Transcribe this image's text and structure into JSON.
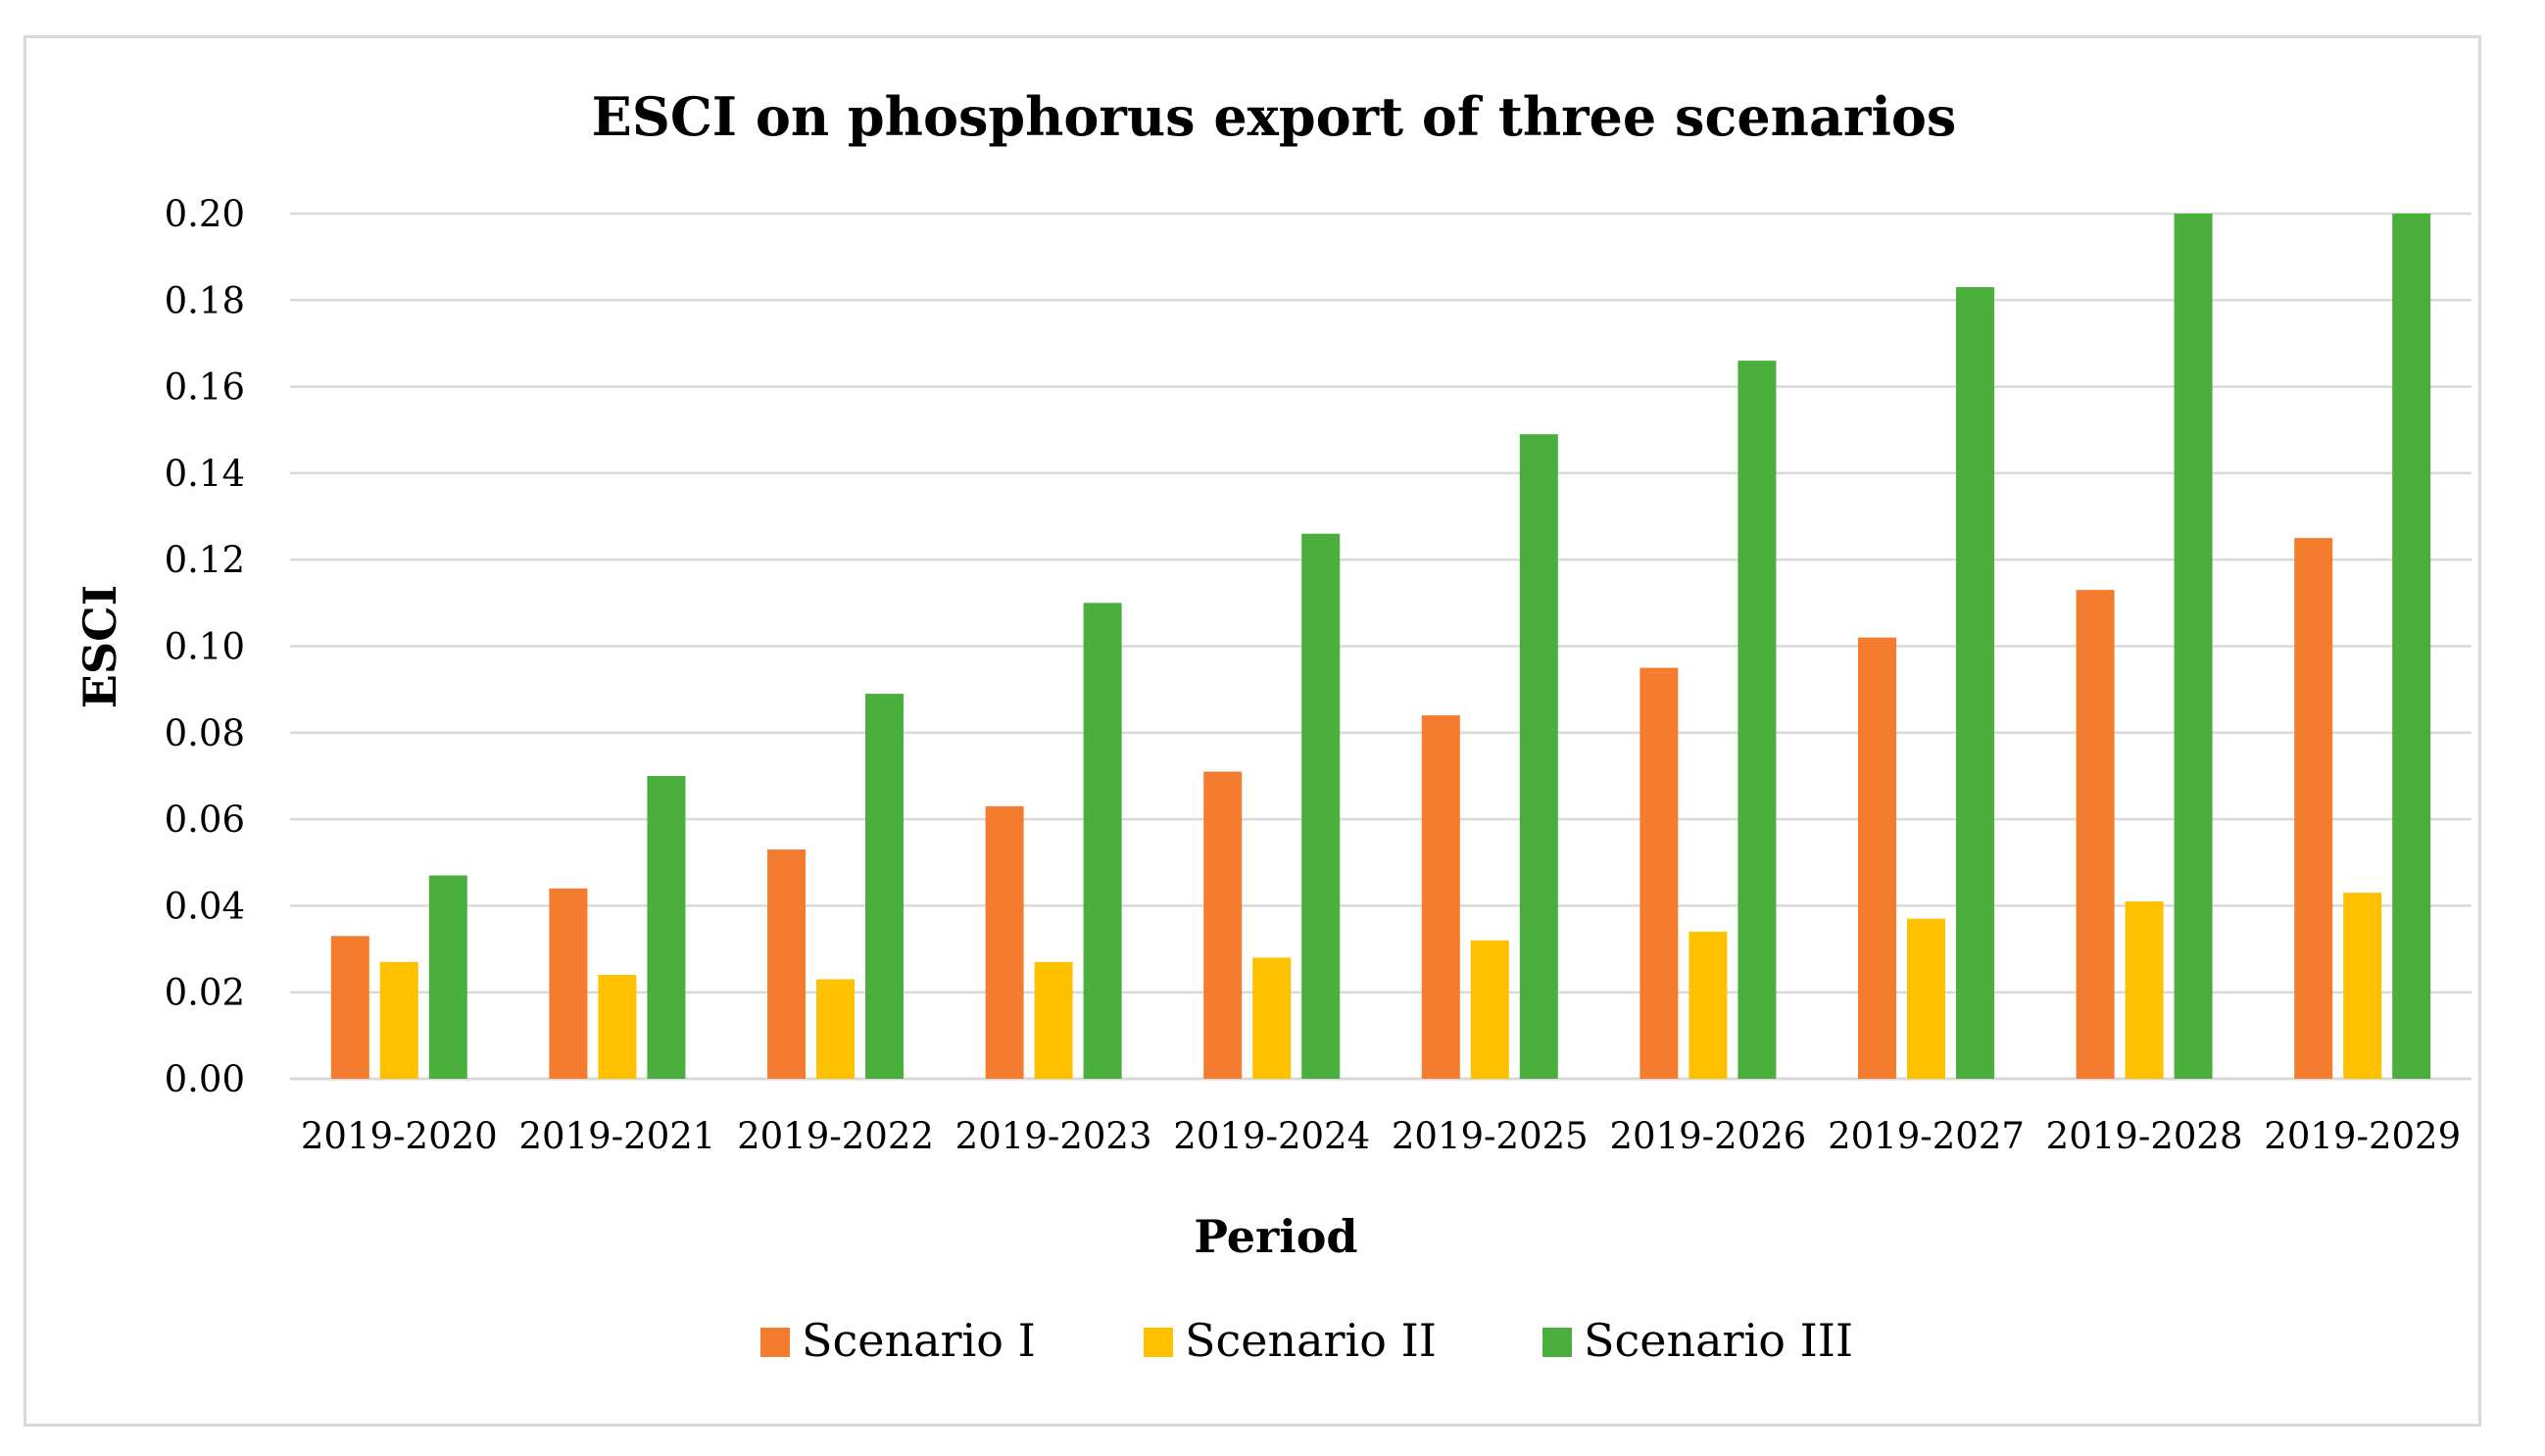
{
  "chart_data": {
    "type": "bar",
    "title": "ESCI on phosphorus export of three scenarios",
    "xlabel": "Period",
    "ylabel": "ESCI",
    "ylim": [
      0,
      0.2
    ],
    "yticks": [
      "0.00",
      "0.02",
      "0.04",
      "0.06",
      "0.08",
      "0.10",
      "0.12",
      "0.14",
      "0.16",
      "0.18",
      "0.20"
    ],
    "grid": true,
    "legend_position": "bottom",
    "categories": [
      "2019-2020",
      "2019-2021",
      "2019-2022",
      "2019-2023",
      "2019-2024",
      "2019-2025",
      "2019-2026",
      "2019-2027",
      "2019-2028",
      "2019-2029"
    ],
    "series": [
      {
        "name": "Scenario I",
        "color": "#f47c2e",
        "values": [
          0.033,
          0.044,
          0.053,
          0.063,
          0.071,
          0.084,
          0.095,
          0.102,
          0.113,
          0.125
        ]
      },
      {
        "name": "Scenario II",
        "color": "#ffc000",
        "values": [
          0.027,
          0.024,
          0.023,
          0.027,
          0.028,
          0.032,
          0.034,
          0.037,
          0.041,
          0.043
        ]
      },
      {
        "name": "Scenario III",
        "color": "#4aaf3c",
        "values": [
          0.047,
          0.07,
          0.089,
          0.11,
          0.126,
          0.149,
          0.166,
          0.183,
          0.2,
          0.2
        ]
      }
    ]
  }
}
